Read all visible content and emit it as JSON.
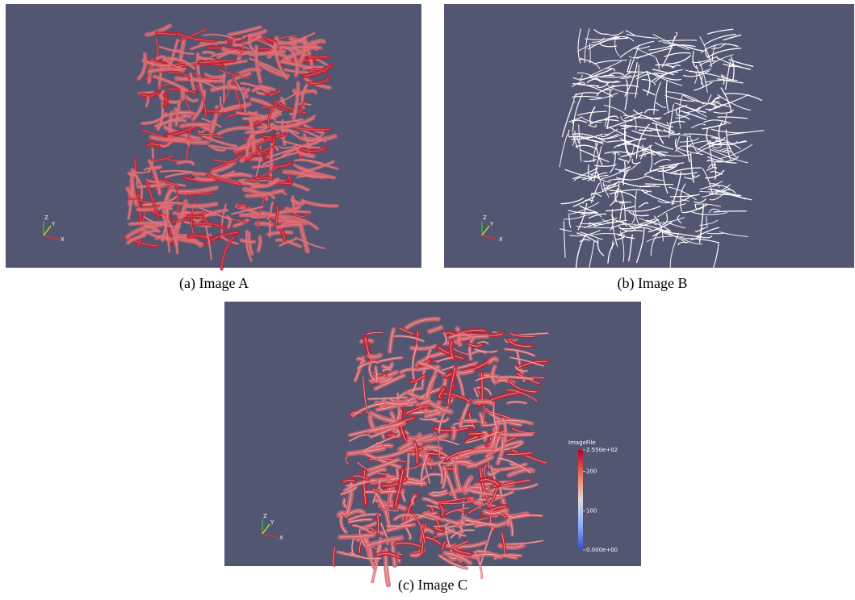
{
  "figure": {
    "panels": [
      {
        "caption": "(a) Image A",
        "triad": {
          "x": "X",
          "y": "Y",
          "z": "Z"
        }
      },
      {
        "caption": "(b) Image B",
        "triad": {
          "x": "X",
          "y": "Y",
          "z": "Z"
        }
      },
      {
        "caption": "(c) Image C",
        "triad": {
          "x": "X",
          "y": "Y",
          "z": "Z"
        },
        "colorbar": {
          "title": "ImageFile",
          "ticks": [
            {
              "value": 255,
              "label": "2.550e+02"
            },
            200,
            100,
            {
              "value": 0,
              "label": "0.000e+00"
            }
          ]
        }
      }
    ]
  }
}
